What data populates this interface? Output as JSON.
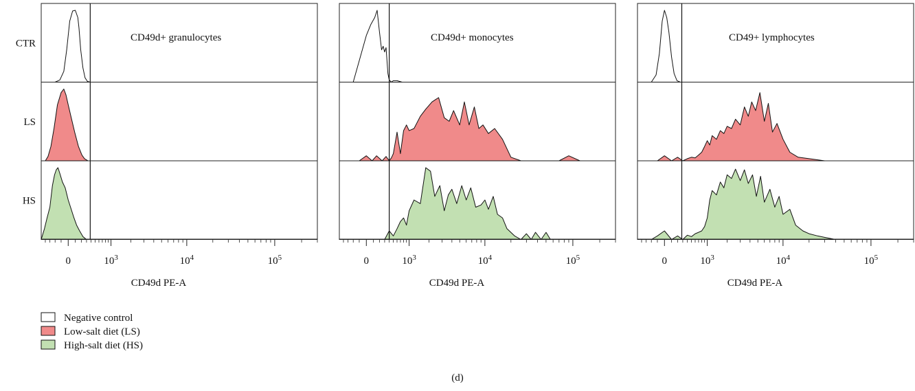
{
  "figure_label": "(d)",
  "chart_data": [
    {
      "type": "area",
      "title": "CD49d+ granulocytes",
      "xlabel": "CD49d PE-A",
      "x_scale": "biexponential",
      "xlim": [
        -500,
        300000
      ],
      "rows": [
        "CTR",
        "LS",
        "HS"
      ],
      "x_ticks": [
        {
          "value": 0,
          "label": "0"
        },
        {
          "value": 1000,
          "base": "10",
          "exp": "3"
        },
        {
          "value": 10000,
          "base": "10",
          "exp": "4"
        },
        {
          "value": 100000,
          "base": "10",
          "exp": "5"
        }
      ],
      "gate": 380,
      "series": [
        {
          "name": "Negative control",
          "row": "CTR",
          "fill": "#ffffff",
          "x": [
            -200,
            -120,
            -60,
            -20,
            20,
            60,
            100,
            140,
            160,
            190,
            230,
            270,
            320,
            380
          ],
          "y": [
            0,
            0.03,
            0.15,
            0.45,
            0.85,
            0.99,
            1.0,
            0.9,
            0.75,
            0.45,
            0.2,
            0.06,
            0.01,
            0
          ]
        },
        {
          "name": "Low-salt diet (LS)",
          "row": "LS",
          "fill": "#f08a8a",
          "x": [
            -400,
            -340,
            -280,
            -220,
            -160,
            -100,
            -60,
            -30,
            0,
            40,
            90,
            150,
            210,
            260,
            330
          ],
          "y": [
            0,
            0.06,
            0.2,
            0.45,
            0.78,
            0.95,
            1.0,
            0.92,
            0.78,
            0.6,
            0.4,
            0.2,
            0.08,
            0.03,
            0
          ]
        },
        {
          "name": "High-salt diet (HS)",
          "row": "HS",
          "fill": "#c2e0b2",
          "x": [
            -500,
            -420,
            -360,
            -300,
            -250,
            -210,
            -180,
            -150,
            -120,
            -80,
            -40,
            0,
            40,
            80,
            120,
            170,
            230,
            300
          ],
          "y": [
            0,
            0.15,
            0.3,
            0.45,
            0.75,
            0.9,
            0.97,
            1.0,
            0.92,
            0.8,
            0.72,
            0.55,
            0.42,
            0.3,
            0.2,
            0.12,
            0.04,
            0
          ]
        }
      ]
    },
    {
      "type": "area",
      "title": "CD49d+ monocytes",
      "xlabel": "CD49d PE-A",
      "x_scale": "biexponential",
      "xlim": [
        -500,
        300000
      ],
      "rows": [
        "CTR",
        "LS",
        "HS"
      ],
      "x_ticks": [
        {
          "value": 0,
          "label": "0"
        },
        {
          "value": 1000,
          "base": "10",
          "exp": "3"
        },
        {
          "value": 10000,
          "base": "10",
          "exp": "4"
        },
        {
          "value": 100000,
          "base": "10",
          "exp": "5"
        }
      ],
      "gate": 400,
      "series": [
        {
          "name": "Negative control",
          "row": "CTR",
          "fill": "#ffffff",
          "x": [
            -200,
            -100,
            0,
            60,
            120,
            160,
            200,
            240,
            270,
            300,
            330,
            370,
            400,
            450,
            500,
            600,
            750
          ],
          "y": [
            0,
            0.3,
            0.65,
            0.8,
            0.9,
            1.0,
            0.7,
            0.45,
            0.5,
            0.42,
            0.48,
            0.12,
            0.03,
            0,
            0.02,
            0.02,
            0
          ]
        },
        {
          "name": "Low-salt diet (LS)",
          "row": "LS",
          "fill": "#f08a8a",
          "x": [
            -100,
            0,
            80,
            150,
            250,
            330,
            400,
            450,
            500,
            600,
            700,
            800,
            900,
            1000,
            1200,
            1500,
            1800,
            2200,
            2700,
            3200,
            3700,
            4200,
            5000,
            5700,
            6500,
            7500,
            8500,
            9500,
            11000,
            13000,
            16000,
            20000,
            26000,
            40000,
            70000,
            90000,
            120000
          ],
          "y": [
            0,
            0.07,
            0,
            0.07,
            0,
            0.06,
            0,
            0.04,
            0.1,
            0.4,
            0.1,
            0.42,
            0.5,
            0.42,
            0.45,
            0.62,
            0.72,
            0.82,
            0.88,
            0.6,
            0.55,
            0.7,
            0.5,
            0.82,
            0.5,
            0.75,
            0.45,
            0.5,
            0.38,
            0.45,
            0.3,
            0.05,
            0,
            0,
            0,
            0.07,
            0
          ]
        },
        {
          "name": "High-salt diet (HS)",
          "row": "HS",
          "fill": "#c2e0b2",
          "x": [
            300,
            400,
            500,
            600,
            700,
            800,
            900,
            1000,
            1200,
            1500,
            1800,
            2100,
            2400,
            2800,
            3200,
            3600,
            4000,
            4600,
            5300,
            6000,
            6800,
            7800,
            9000,
            10000,
            11000,
            12500,
            14000,
            16000,
            18000,
            22000,
            26000,
            30000,
            34000,
            38000,
            44000,
            50000,
            56000
          ],
          "y": [
            0,
            0.12,
            0.05,
            0.15,
            0.25,
            0.3,
            0.2,
            0.4,
            0.55,
            0.5,
            1.0,
            0.95,
            0.6,
            0.75,
            0.4,
            0.62,
            0.7,
            0.5,
            0.75,
            0.55,
            0.72,
            0.45,
            0.48,
            0.55,
            0.42,
            0.6,
            0.35,
            0.3,
            0.15,
            0.05,
            0,
            0.08,
            0,
            0.1,
            0,
            0.1,
            0
          ]
        }
      ]
    },
    {
      "type": "area",
      "title": "CD49+ lymphocytes",
      "xlabel": "CD49d PE-A",
      "x_scale": "biexponential",
      "xlim": [
        -500,
        300000
      ],
      "rows": [
        "CTR",
        "LS",
        "HS"
      ],
      "x_ticks": [
        {
          "value": 0,
          "label": "0"
        },
        {
          "value": 1000,
          "base": "10",
          "exp": "3"
        },
        {
          "value": 10000,
          "base": "10",
          "exp": "4"
        },
        {
          "value": 100000,
          "base": "10",
          "exp": "5"
        }
      ],
      "gate": 280,
      "series": [
        {
          "name": "Negative control",
          "row": "CTR",
          "fill": "#ffffff",
          "x": [
            -200,
            -120,
            -70,
            -30,
            0,
            30,
            60,
            100,
            140,
            190,
            250
          ],
          "y": [
            0,
            0.1,
            0.4,
            0.85,
            1.0,
            0.9,
            0.7,
            0.35,
            0.12,
            0.02,
            0
          ]
        },
        {
          "name": "Low-salt diet (LS)",
          "row": "LS",
          "fill": "#f08a8a",
          "x": [
            -100,
            0,
            100,
            200,
            300,
            400,
            500,
            600,
            700,
            800,
            900,
            1000,
            1100,
            1200,
            1400,
            1600,
            1800,
            2000,
            2300,
            2600,
            3000,
            3400,
            3800,
            4200,
            4700,
            5300,
            6000,
            6700,
            7500,
            8500,
            10000,
            12000,
            15000,
            20000,
            30000
          ],
          "y": [
            0,
            0.07,
            0,
            0.05,
            0,
            0.03,
            0.05,
            0.04,
            0.08,
            0.12,
            0.2,
            0.28,
            0.22,
            0.35,
            0.3,
            0.42,
            0.38,
            0.48,
            0.45,
            0.58,
            0.5,
            0.75,
            0.62,
            0.82,
            0.7,
            0.95,
            0.55,
            0.8,
            0.4,
            0.52,
            0.3,
            0.12,
            0.05,
            0.03,
            0
          ]
        },
        {
          "name": "High-salt diet (HS)",
          "row": "HS",
          "fill": "#c2e0b2",
          "x": [
            -200,
            -100,
            0,
            100,
            200,
            300,
            400,
            500,
            600,
            700,
            800,
            900,
            1000,
            1100,
            1200,
            1400,
            1600,
            1800,
            2000,
            2300,
            2600,
            3000,
            3400,
            3800,
            4300,
            4800,
            5400,
            6000,
            7000,
            8000,
            9000,
            10000,
            12000,
            14000,
            17000,
            20000,
            25000,
            30000,
            40000
          ],
          "y": [
            0,
            0.05,
            0.12,
            0,
            0.05,
            0,
            0.06,
            0.04,
            0.08,
            0.1,
            0.12,
            0.18,
            0.3,
            0.55,
            0.68,
            0.62,
            0.8,
            0.72,
            0.9,
            0.85,
            0.98,
            0.82,
            0.97,
            0.78,
            0.9,
            0.6,
            0.88,
            0.52,
            0.7,
            0.45,
            0.6,
            0.35,
            0.42,
            0.2,
            0.12,
            0.08,
            0.05,
            0.03,
            0
          ]
        }
      ]
    }
  ],
  "legend": [
    {
      "label": "Negative control",
      "color": "#ffffff"
    },
    {
      "label": "Low-salt diet (LS)",
      "color": "#f08a8a"
    },
    {
      "label": "High-salt diet (HS)",
      "color": "#c2e0b2"
    }
  ]
}
